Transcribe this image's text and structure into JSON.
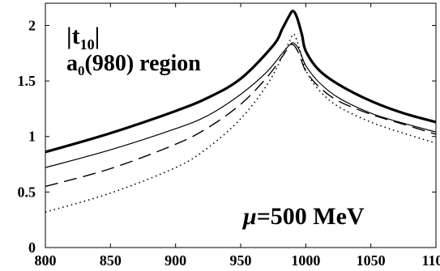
{
  "chart_data": {
    "type": "line",
    "title": "",
    "xlabel": "",
    "ylabel": "",
    "xlim": [
      800,
      1100
    ],
    "ylim": [
      0,
      2.2
    ],
    "x_ticks": [
      "800",
      "850",
      "900",
      "950",
      "1000",
      "1050",
      "1100"
    ],
    "y_ticks": [
      "0",
      "0.5",
      "1",
      "1.5",
      "2"
    ],
    "grid": false,
    "annotations": {
      "quantity_main": "|t",
      "quantity_sub": "10",
      "quantity_close": "|",
      "region_main": "a",
      "region_sub": "0",
      "region_rest": "(980) region",
      "mu_symbol": "μ",
      "mu_value": "=500 MeV"
    },
    "series": [
      {
        "style": "thick-solid",
        "points": [
          [
            800,
            0.86
          ],
          [
            850,
            1.03
          ],
          [
            900,
            1.23
          ],
          [
            925,
            1.35
          ],
          [
            950,
            1.52
          ],
          [
            975,
            1.82
          ],
          [
            982,
            1.97
          ],
          [
            987,
            2.08
          ],
          [
            990,
            2.13
          ],
          [
            993,
            2.08
          ],
          [
            997,
            1.92
          ],
          [
            1000,
            1.77
          ],
          [
            1010,
            1.6
          ],
          [
            1025,
            1.47
          ],
          [
            1050,
            1.32
          ],
          [
            1075,
            1.21
          ],
          [
            1100,
            1.13
          ]
        ]
      },
      {
        "style": "thin-solid",
        "points": [
          [
            800,
            0.72
          ],
          [
            850,
            0.88
          ],
          [
            900,
            1.07
          ],
          [
            925,
            1.19
          ],
          [
            950,
            1.38
          ],
          [
            970,
            1.58
          ],
          [
            982,
            1.75
          ],
          [
            988,
            1.83
          ],
          [
            991,
            1.84
          ],
          [
            995,
            1.78
          ],
          [
            1000,
            1.64
          ],
          [
            1010,
            1.49
          ],
          [
            1025,
            1.35
          ],
          [
            1050,
            1.21
          ],
          [
            1075,
            1.12
          ],
          [
            1100,
            1.04
          ]
        ]
      },
      {
        "style": "dashed",
        "points": [
          [
            800,
            0.55
          ],
          [
            850,
            0.71
          ],
          [
            900,
            0.93
          ],
          [
            925,
            1.08
          ],
          [
            950,
            1.29
          ],
          [
            970,
            1.53
          ],
          [
            982,
            1.72
          ],
          [
            988,
            1.82
          ],
          [
            991,
            1.82
          ],
          [
            995,
            1.74
          ],
          [
            1000,
            1.59
          ],
          [
            1010,
            1.45
          ],
          [
            1025,
            1.32
          ],
          [
            1050,
            1.2
          ],
          [
            1075,
            1.11
          ],
          [
            1100,
            1.02
          ]
        ]
      },
      {
        "style": "dotted",
        "points": [
          [
            800,
            0.32
          ],
          [
            850,
            0.49
          ],
          [
            900,
            0.72
          ],
          [
            925,
            0.9
          ],
          [
            950,
            1.16
          ],
          [
            970,
            1.46
          ],
          [
            982,
            1.72
          ],
          [
            988,
            1.87
          ],
          [
            991,
            1.92
          ],
          [
            995,
            1.8
          ],
          [
            1000,
            1.6
          ],
          [
            1010,
            1.42
          ],
          [
            1025,
            1.27
          ],
          [
            1050,
            1.13
          ],
          [
            1075,
            1.03
          ],
          [
            1100,
            0.94
          ]
        ]
      }
    ]
  }
}
